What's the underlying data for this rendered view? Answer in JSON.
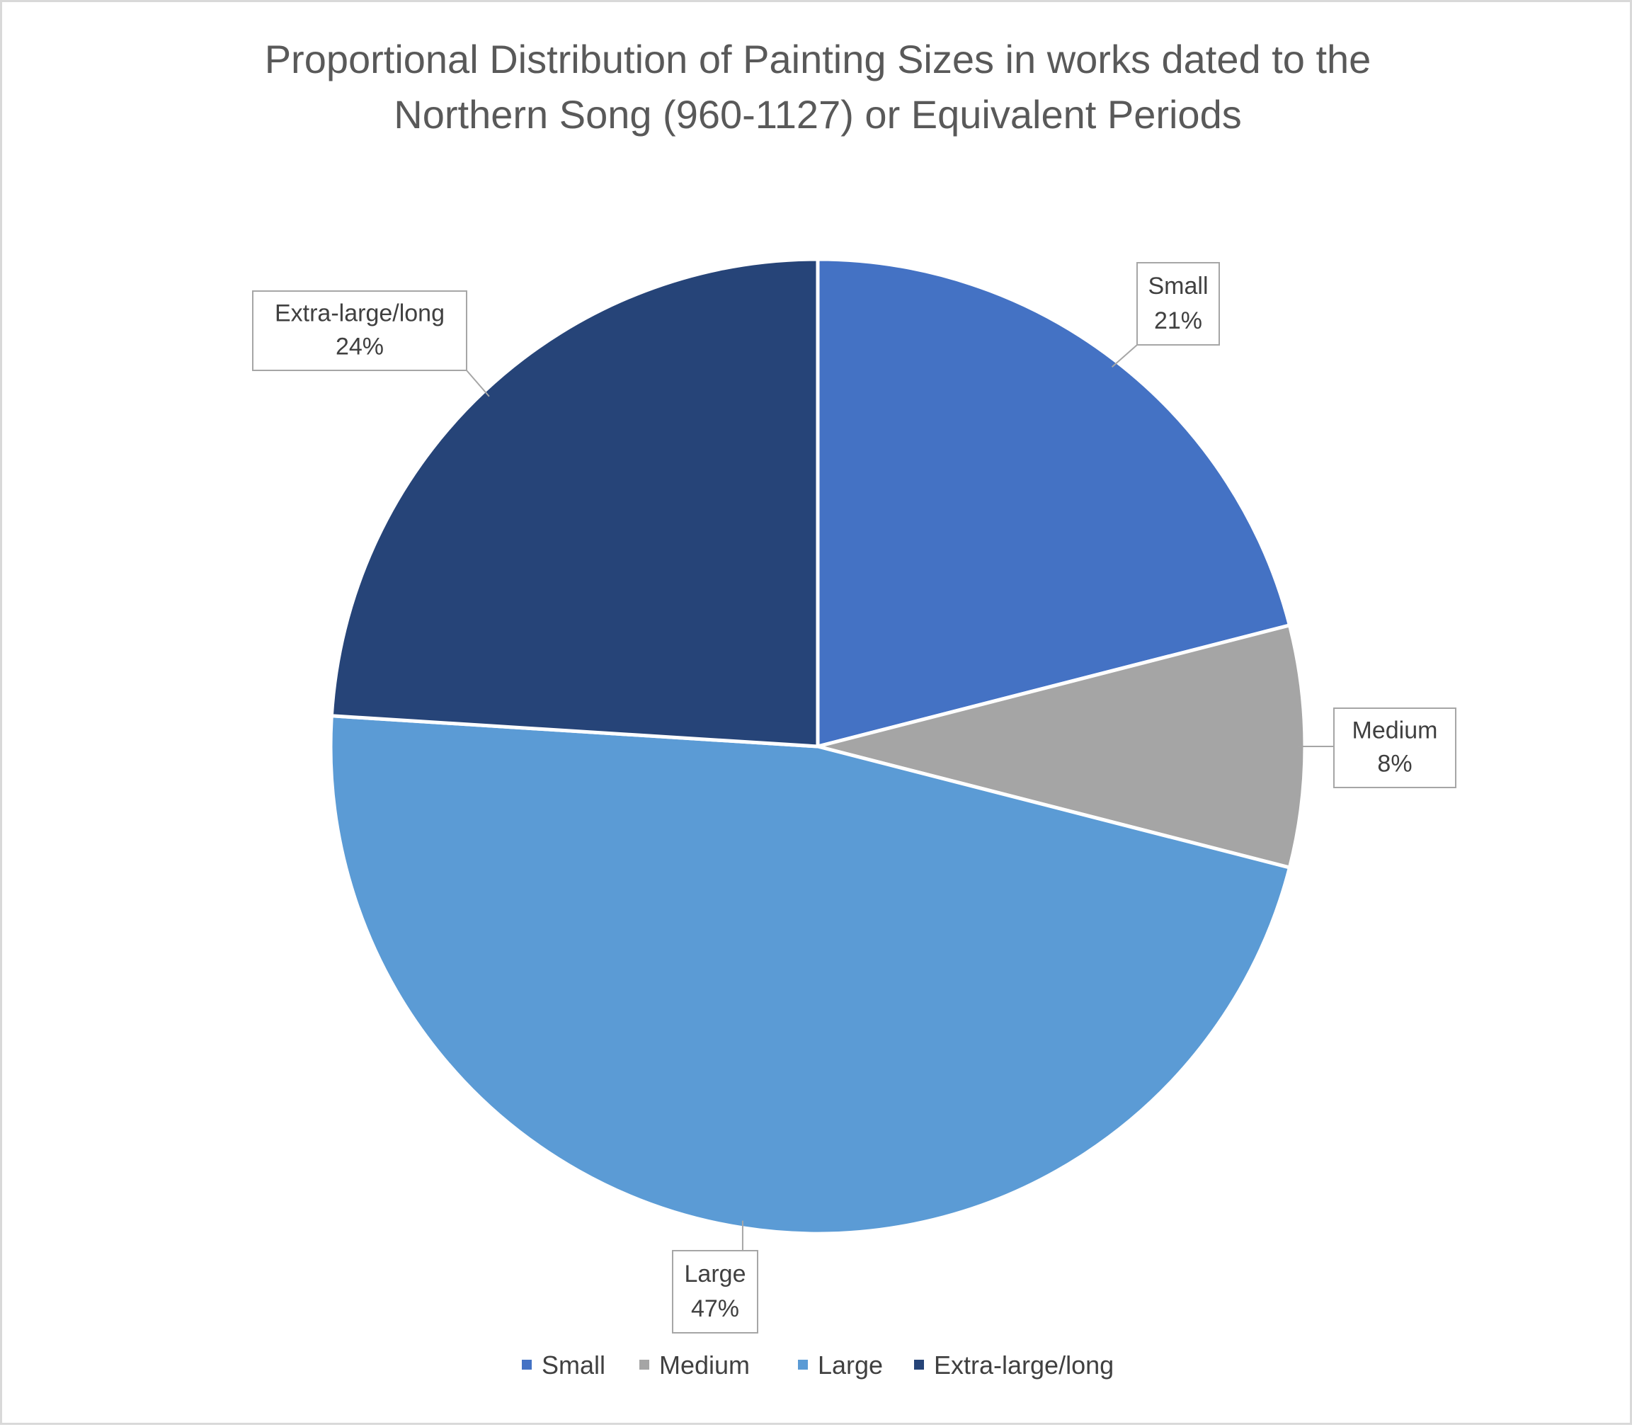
{
  "chart_data": {
    "type": "pie",
    "title": "Proportional Distribution of Painting Sizes in works dated to the Northern Song (960-1127)  or Equivalent Periods",
    "title_lines": [
      "Proportional Distribution of Painting Sizes in works dated to the",
      "Northern Song (960-1127)  or Equivalent Periods"
    ],
    "categories": [
      "Small",
      "Medium",
      "Large",
      "Extra-large/long"
    ],
    "values": [
      21,
      8,
      47,
      24
    ],
    "value_labels": [
      "21%",
      "8%",
      "47%",
      "24%"
    ],
    "colors": [
      "#4472c4",
      "#a5a5a5",
      "#5b9bd5",
      "#264478"
    ],
    "start_angle_deg": 0,
    "direction": "clockwise",
    "legend_position": "bottom",
    "data_labels": "callouts"
  }
}
